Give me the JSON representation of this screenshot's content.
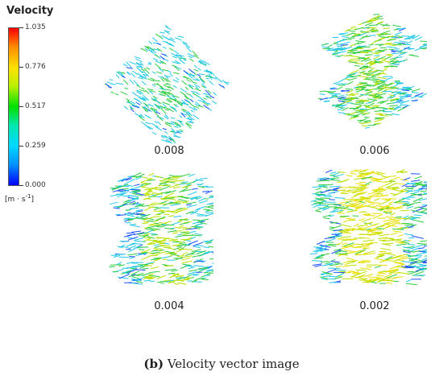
{
  "legend": {
    "title": "Velocity",
    "ticks": [
      "1.035",
      "0.776",
      "0.517",
      "0.259",
      "0.000"
    ],
    "units_prefix": "[m · s",
    "units_sup": "-1",
    "units_suffix": "]"
  },
  "panels": [
    {
      "label": "0.008",
      "pattern": "diamond",
      "dominant_color": "green"
    },
    {
      "label": "0.006",
      "pattern": "double-vortex",
      "dominant_color": "green-yellow"
    },
    {
      "label": "0.004",
      "pattern": "triple-vortex",
      "dominant_color": "yellow-green"
    },
    {
      "label": "0.002",
      "pattern": "triple-vortex",
      "dominant_color": "yellow"
    }
  ],
  "caption": {
    "letter": "(b)",
    "text": " Velocity vector image"
  },
  "colors": {
    "blue": "#1f4fff",
    "cyan": "#22c8e8",
    "green": "#2ecc40",
    "yellowgreen": "#b8e000",
    "yellow": "#e8e000"
  }
}
